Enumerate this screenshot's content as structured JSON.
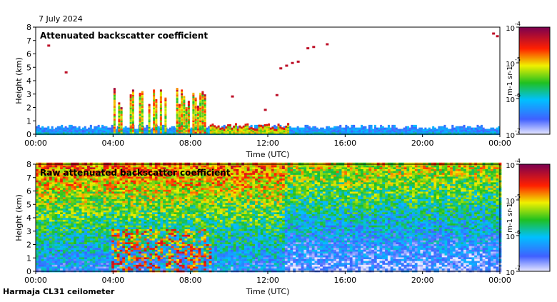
{
  "date": "7 July 2024",
  "instrument": "Harmaja CL31 ceilometer",
  "colors": {
    "low": "#c8c8f0",
    "blue": "#3050ff",
    "green": "#20c020",
    "yellow": "#f0e000",
    "red": "#e02000",
    "high": "#8b0a3c"
  },
  "chart_data": [
    {
      "type": "heatmap",
      "title": "Attenuated backscatter coefficient",
      "xlabel": "Time (UTC)",
      "ylabel": "Height (km)",
      "xticks": [
        "00:00",
        "04:00",
        "08:00",
        "12:00",
        "16:00",
        "20:00",
        "00:00"
      ],
      "xlim_hours": [
        0,
        24
      ],
      "ylim": [
        0,
        8
      ],
      "yticks": [
        "0",
        "1",
        "2",
        "3",
        "4",
        "5",
        "6",
        "7",
        "8"
      ],
      "colorbar": {
        "label": "m-1 sr-1",
        "ticks": [
          "10",
          "10",
          "10",
          "10"
        ],
        "exponents": [
          "-7",
          "-6",
          "-5",
          "-4"
        ],
        "range_log10": [
          -7,
          -4
        ]
      },
      "features": [
        {
          "kind": "boundary_layer",
          "from_h": 0,
          "to_h": 24,
          "top_km": 0.5
        },
        {
          "kind": "cloud_base",
          "from_h": 3.9,
          "to_h": 9.0,
          "height_km": 3.0
        },
        {
          "kind": "cloud_base",
          "from_h": 9.0,
          "to_h": 13.0,
          "height_km": 0.6
        },
        {
          "kind": "elevated_layer",
          "from_h": 13.8,
          "to_h": 15.0,
          "height_km": 6.5
        },
        {
          "kind": "elevated_layer",
          "from_h": 12.5,
          "to_h": 13.5,
          "height_km": 5.0
        }
      ]
    },
    {
      "type": "heatmap",
      "title": "Raw attenuated backscatter coefficient",
      "xlabel": "Time (UTC)",
      "ylabel": "Height (km)",
      "xticks": [
        "00:00",
        "04:00",
        "08:00",
        "12:00",
        "16:00",
        "20:00",
        "00:00"
      ],
      "xlim_hours": [
        0,
        24
      ],
      "ylim": [
        0,
        8
      ],
      "yticks": [
        "0",
        "1",
        "2",
        "3",
        "4",
        "5",
        "6",
        "7",
        "8"
      ],
      "colorbar": {
        "label": "m-1 sr-1",
        "ticks": [
          "10",
          "10",
          "10",
          "10"
        ],
        "exponents": [
          "-7",
          "-6",
          "-5",
          "-4"
        ],
        "range_log10": [
          -7,
          -4
        ]
      }
    }
  ]
}
